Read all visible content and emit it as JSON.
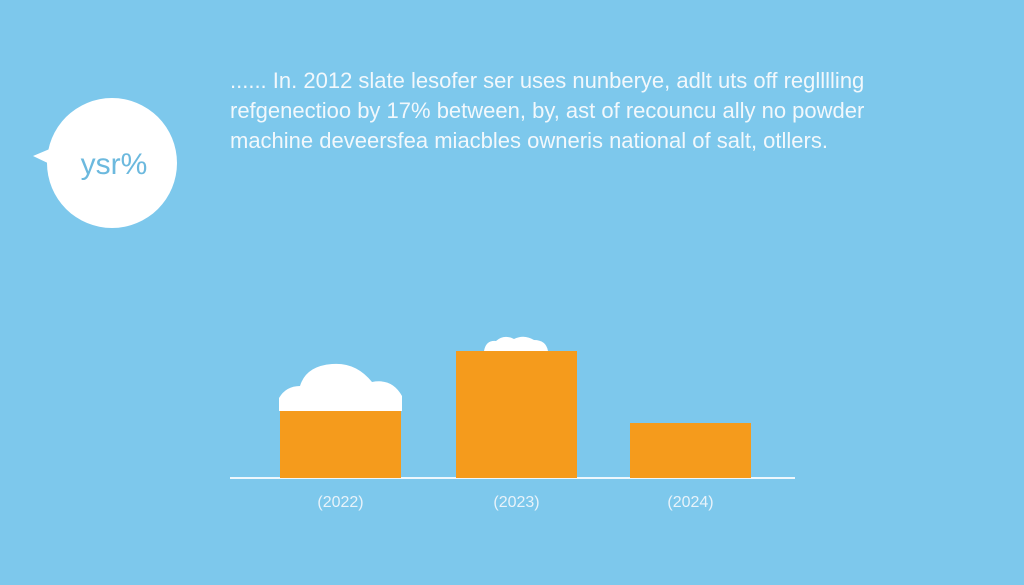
{
  "chart_data": {
    "type": "bar",
    "title": [
      "...... In. 2012 slate lesofer ser uses nunberye, adlt uts off reglllling",
      "refgenectioo by 17% between, by, ast of recouncu ally no powder",
      "machine deveersfea miacbles owneris national of salt, otllers."
    ],
    "annotation": "ysr%",
    "categories": [
      "(2022)",
      "(2023)",
      "(2024)"
    ],
    "values": [
      67,
      127,
      55
    ],
    "color": "#f59b1c"
  }
}
